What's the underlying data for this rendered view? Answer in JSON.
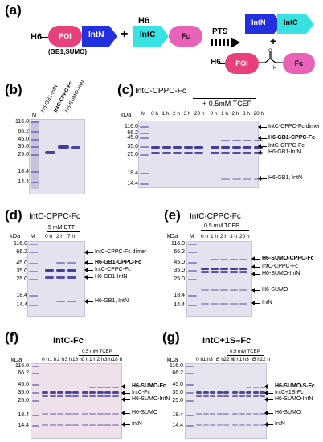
{
  "a": {
    "label": "(a)",
    "h6_left": "H6",
    "poi": "POI",
    "int_n": "IntN",
    "int_c": "IntC",
    "fc": "Fc",
    "h6_mid": "H6",
    "plus1": "+",
    "poi_note": "(GB1,SUMO)",
    "arrow_label": "PTS",
    "plus2": "+",
    "prod_int_n": "IntN",
    "prod_int_c": "IntC",
    "prod_h6": "H6",
    "prod_poi": "POI",
    "prod_fc": "Fc"
  },
  "b": {
    "label": "(b)",
    "m": "M",
    "lane1": "H6-GB1-IntN",
    "lane2": "IntC-CPPC-Fc",
    "lane3": "H6-SUMO-IntN",
    "markers": [
      "116.0",
      "66.2",
      "45.0",
      "35.0",
      "25.0",
      "18.4",
      "14.4"
    ]
  },
  "c": {
    "label": "(c)",
    "title": "IntC-CPPC-Fc",
    "tcep": "+ 0.5mM TCEP",
    "kda": "kDa",
    "m": "M",
    "lanes": [
      "0 h",
      "1 h",
      "2 h",
      "3 h",
      "20 h",
      "0 h",
      "1 h",
      "2 h",
      "3 h",
      "20 h"
    ],
    "markers": [
      "116.0",
      "66.2",
      "45.0",
      "35.0",
      "25.0",
      "18.4",
      "14.4"
    ],
    "ann": [
      "IntC-CPPC-Fc dimer",
      "H6-GB1-CPPC-Fc",
      "IntC-CPPC-Fc",
      "H6-GB1-IntN",
      "H6-GB1, IntN"
    ]
  },
  "d": {
    "label": "(d)",
    "title": "IntC-CPPC-Fc",
    "dtt": "5 mM DTT",
    "kda": "kDa",
    "m": "M",
    "lanes": [
      "0 h",
      "2 h",
      "7 h"
    ],
    "markers": [
      "116.0",
      "66.2",
      "45.0",
      "35.0",
      "25.0",
      "18.4",
      "14.4"
    ],
    "ann": [
      "IntC-CPPC-Fc dimer",
      "H6-GB1-CPPC-Fc",
      "IntC-CPPC-Fc",
      "H6-GB1-IntN",
      "H6-GB1, IntN"
    ]
  },
  "e": {
    "label": "(e)",
    "title": "IntC-CPPC-Fc",
    "tcep": "0.5 mM TCEP",
    "kda": "kDa",
    "m": "M",
    "lanes": [
      "0 h",
      "1 h",
      "2 h",
      "3 h",
      "20 h"
    ],
    "markers": [
      "116.0",
      "66.2",
      "45.0",
      "35.0",
      "25.0",
      "18.4",
      "14.4"
    ],
    "ann": [
      "H6-SUMO-CPPC-Fc",
      "IntC-CPPC-Fc",
      "H6-SUMO-IntN",
      "H6-SUMO",
      "IntN"
    ]
  },
  "f": {
    "label": "(f)",
    "title": "IntC-Fc",
    "tcep": "0.5 mM TCEP",
    "kda": "kDa",
    "lanes": [
      "0 h",
      "1 h",
      "2 h",
      "3 h",
      "18 h",
      "0 h",
      "1 h",
      "2 h",
      "3 h",
      "18 h"
    ],
    "markers": [
      "116.0",
      "66.2",
      "45.0",
      "35.0",
      "25.0",
      "18.4",
      "14.4"
    ],
    "ann": [
      "H6-SUMO-Fc",
      "IntC-Fc",
      "H6-SUMO-IntN",
      "H6-SUMO",
      "IntN"
    ]
  },
  "g": {
    "label": "(g)",
    "title": "IntC+1S–Fc",
    "tcep": "0.5 mM TCEP",
    "kda": "kDa",
    "lanes": [
      "0 h",
      "1 h",
      "3 h",
      "5 h",
      "22 h",
      "0 h",
      "1 h",
      "3 h",
      "5 h",
      "22 h"
    ],
    "markers": [
      "116.0",
      "66.2",
      "45.0",
      "35.0",
      "25.0",
      "18.4",
      "14.4"
    ],
    "ann": [
      "H6-SUMO-S-Fc",
      "IntC+1S-Fc",
      "H6-SUMO-IntN",
      "H6-SUMO",
      "IntN"
    ]
  },
  "colors": {
    "poi": "#e8407b",
    "int_n": "#2230e0",
    "int_c": "#38e2e2",
    "fc": "#e863b8",
    "gel": "#e4e2ef",
    "gel_pink": "#efe1ec",
    "band": "#3a358f"
  }
}
